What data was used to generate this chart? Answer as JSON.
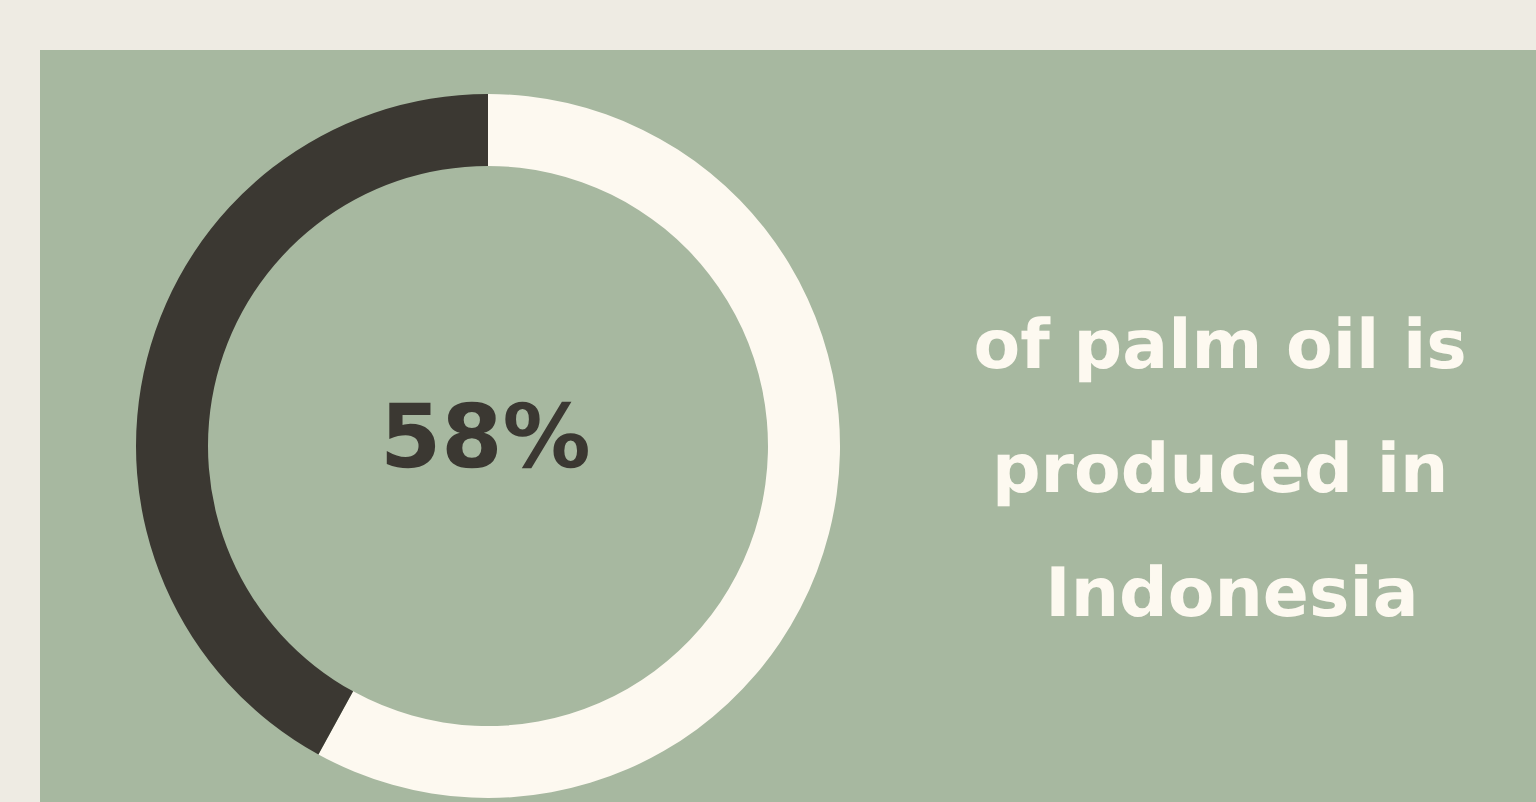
{
  "chart_data": {
    "type": "donut",
    "title": "of palm oil is produced in Indonesia",
    "categories": [
      null,
      null
    ],
    "values": [
      58,
      42
    ],
    "colors": [
      "#fdf9f0",
      "#3b3832"
    ],
    "annotations": [
      "58%"
    ]
  }
}
